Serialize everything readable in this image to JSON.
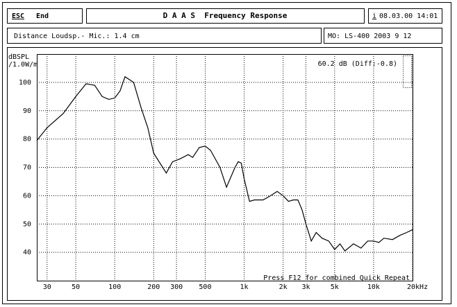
{
  "header": {
    "esc": "ESC",
    "end": "End",
    "title": "D A A S  Frequency Response",
    "info": "i",
    "datetime": "08.03.00 14:01"
  },
  "info_bar": {
    "distance": "Distance Loudsp.- Mic.: 1.4 cm",
    "model": "MO: LS-400 2003 9 12"
  },
  "chart_data": {
    "type": "line",
    "y_label": [
      "dBSPL",
      "/1.0W/m"
    ],
    "annotations": [
      "60.2 dB (Diff:-0.8)",
      "Press F12 for combined Quick Repeat"
    ],
    "x": [
      25,
      30,
      40,
      50,
      60,
      70,
      80,
      90,
      100,
      110,
      120,
      140,
      160,
      180,
      200,
      250,
      280,
      320,
      370,
      400,
      450,
      500,
      550,
      650,
      730,
      850,
      900,
      950,
      1000,
      1100,
      1200,
      1400,
      1600,
      1800,
      2000,
      2200,
      2400,
      2600,
      2800,
      3000,
      3300,
      3600,
      4000,
      4500,
      5000,
      5500,
      6000,
      7000,
      8000,
      9000,
      10000,
      11000,
      12000,
      14000,
      16000,
      18000,
      20000
    ],
    "values": [
      79.5,
      84,
      89,
      95,
      99.5,
      99,
      95,
      94,
      94.5,
      97,
      102,
      100,
      91,
      84,
      75,
      68,
      72,
      73,
      74.5,
      73.5,
      77,
      77.5,
      76,
      70,
      63,
      70,
      72,
      71.5,
      66,
      58,
      58.5,
      58.5,
      60,
      61.5,
      60,
      58,
      58.5,
      58.5,
      55,
      50,
      44,
      47,
      45,
      44,
      41,
      43,
      40.5,
      43,
      41.5,
      44,
      44,
      43.5,
      45,
      44.5,
      46,
      47,
      48
    ],
    "color": "#000000",
    "xscale": "log",
    "xlim": [
      25,
      20000
    ],
    "ylim": [
      30,
      110
    ],
    "xticks": [
      30,
      50,
      100,
      200,
      300,
      500,
      {
        "value": 1000,
        "label": "1k"
      },
      {
        "value": 2000,
        "label": "2k"
      },
      {
        "value": 3000,
        "label": "3k"
      },
      {
        "value": 5000,
        "label": "5k"
      },
      {
        "value": 10000,
        "label": "10k"
      },
      {
        "value": 20000,
        "label": "20kHz"
      }
    ],
    "yticks": [
      40,
      50,
      60,
      70,
      80,
      90,
      100
    ],
    "grid": true
  }
}
